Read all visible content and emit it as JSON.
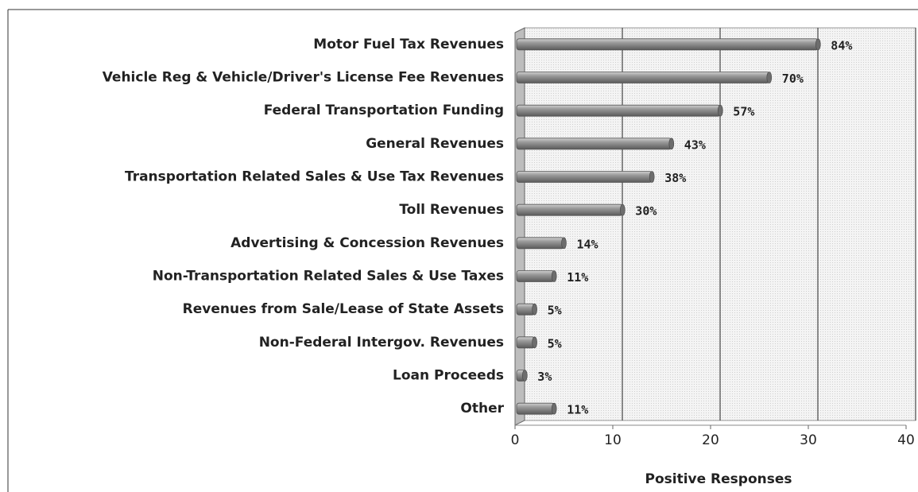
{
  "chart_data": {
    "type": "bar",
    "orientation": "horizontal",
    "x_label": "Positive Responses",
    "categories": [
      "Motor Fuel Tax Revenues",
      "Vehicle Reg & Vehicle/Driver's License Fee Revenues",
      "Federal Transportation Funding",
      "General Revenues",
      "Transportation Related Sales & Use Tax Revenues",
      "Toll Revenues",
      "Advertising & Concession Revenues",
      "Non-Transportation Related Sales & Use Taxes",
      "Revenues from Sale/Lease of State Assets",
      "Non-Federal Intergov. Revenues",
      "Loan Proceeds",
      "Other"
    ],
    "values": [
      31,
      26,
      21,
      16,
      14,
      11,
      5,
      4,
      2,
      2,
      1,
      4
    ],
    "value_labels": [
      "84%",
      "70%",
      "57%",
      "43%",
      "38%",
      "30%",
      "14%",
      "11%",
      "5%",
      "5%",
      "3%",
      "11%"
    ],
    "color": "#8c8c8c",
    "xlim": [
      0,
      40
    ],
    "xticks": [
      0,
      10,
      20,
      30,
      40
    ],
    "grid": true
  }
}
